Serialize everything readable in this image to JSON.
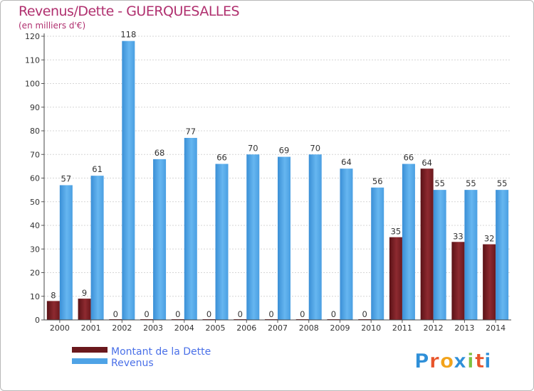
{
  "chart_data": {
    "type": "bar",
    "title": "Revenus/Dette - GUERQUESALLES",
    "subtitle": "(en milliers d'€)",
    "xlabel": "",
    "ylabel": "",
    "ylim": [
      0,
      120
    ],
    "yticks": [
      0,
      10,
      20,
      30,
      40,
      50,
      60,
      70,
      80,
      90,
      100,
      110,
      120
    ],
    "grid": true,
    "legend_position": "bottom-left",
    "categories": [
      "2000",
      "2001",
      "2002",
      "2003",
      "2004",
      "2005",
      "2006",
      "2007",
      "2008",
      "2009",
      "2010",
      "2011",
      "2012",
      "2013",
      "2014"
    ],
    "series": [
      {
        "name": "Montant de la Dette",
        "color": "#7a1f24",
        "values": [
          8,
          9,
          0,
          0,
          0,
          0,
          0,
          0,
          0,
          0,
          0,
          35,
          64,
          33,
          32
        ]
      },
      {
        "name": "Revenus",
        "color": "#4ea3e6",
        "values": [
          57,
          61,
          118,
          68,
          77,
          66,
          70,
          69,
          70,
          64,
          56,
          66,
          55,
          55,
          55
        ]
      }
    ]
  },
  "logo": {
    "letters": [
      "P",
      "r",
      "o",
      "x",
      "i",
      "t",
      "i"
    ],
    "colors": [
      "#2e8fd8",
      "#e8542a",
      "#f2a31b",
      "#2e8fd8",
      "#7cc242",
      "#e8542a",
      "#2e8fd8"
    ]
  }
}
